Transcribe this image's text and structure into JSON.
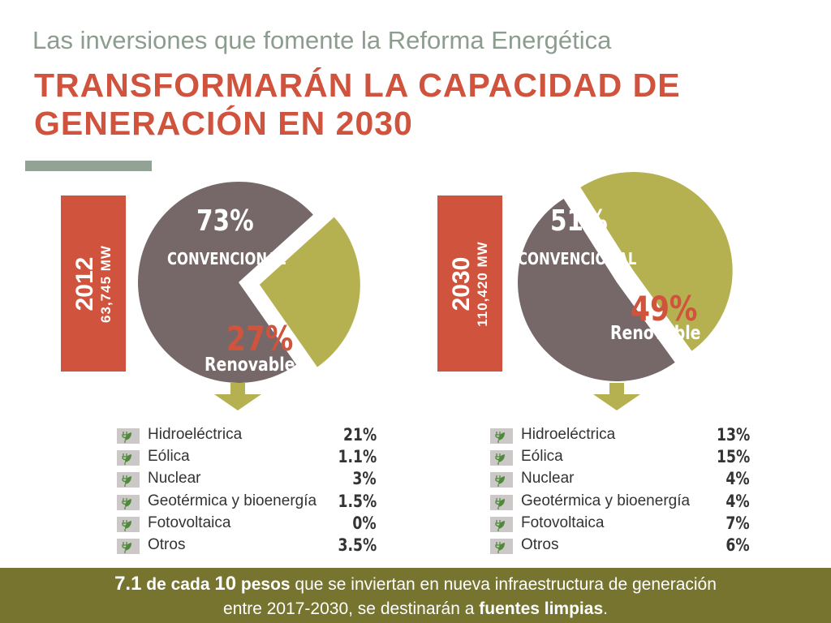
{
  "header": {
    "subtitle": "Las inversiones que fomente la Reforma Energética",
    "title_line1": "TRANSFORMARÁN LA CAPACIDAD DE",
    "title_line2": "GENERACIÓN EN 2030"
  },
  "colors": {
    "accent_red": "#cf533d",
    "conventional": "#766869",
    "renewable": "#b5b150",
    "footer_bg": "#76742f",
    "rule": "#92a395"
  },
  "chart_data": [
    {
      "type": "pie",
      "year": "2012",
      "capacity": "63,745 MW",
      "slices": [
        {
          "name": "CONVENCIONAL",
          "pct_label": "73%",
          "value": 73
        },
        {
          "name": "Renovable",
          "pct_label": "27%",
          "value": 27
        }
      ],
      "breakdown": [
        {
          "name": "Hidroeléctrica",
          "value": "21%"
        },
        {
          "name": "Eólica",
          "value": "1.1%"
        },
        {
          "name": "Nuclear",
          "value": "3%"
        },
        {
          "name": "Geotérmica y bioenergía",
          "value": "1.5%"
        },
        {
          "name": "Fotovoltaica",
          "value": "0%"
        },
        {
          "name": "Otros",
          "value": "3.5%"
        }
      ]
    },
    {
      "type": "pie",
      "year": "2030",
      "capacity": "110,420 MW",
      "slices": [
        {
          "name": "CONVENCIONAL",
          "pct_label": "51%",
          "value": 51
        },
        {
          "name": "Renovable",
          "pct_label": "49%",
          "value": 49
        }
      ],
      "breakdown": [
        {
          "name": "Hidroeléctrica",
          "value": "13%"
        },
        {
          "name": "Eólica",
          "value": "15%"
        },
        {
          "name": "Nuclear",
          "value": "4%"
        },
        {
          "name": "Geotérmica y bioenergía",
          "value": "4%"
        },
        {
          "name": "Fotovoltaica",
          "value": "7%"
        },
        {
          "name": "Otros",
          "value": "6%"
        }
      ]
    }
  ],
  "footer": {
    "part1": "7.1",
    "part2": " de cada ",
    "part3": "10",
    "part4": " pesos",
    "part5": " que se inviertan en nueva infraestructura de generación",
    "part6": "entre 2017-2030, se destinarán a ",
    "part7": "fuentes limpias",
    "part8": "."
  }
}
